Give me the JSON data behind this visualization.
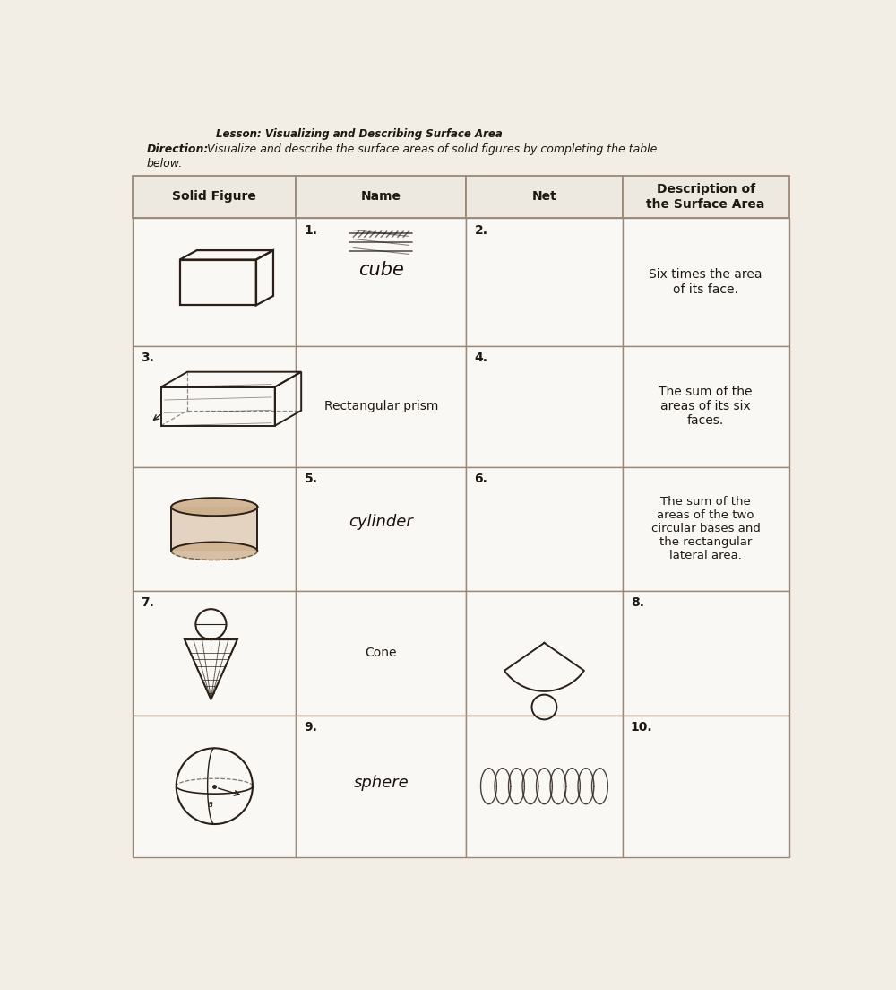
{
  "title_lesson": "Lesson: Visualizing and Describing Surface Area",
  "title_direction_bold": "Direction:",
  "title_direction_rest": " Visualize and describe the surface areas of solid figures by completing the table",
  "title_direction_line2": "below.",
  "col_headers": [
    "Solid Figure",
    "Name",
    "Net",
    "Description of\nthe Surface Area"
  ],
  "row_numbers": {
    "col0": [
      "3.",
      "7."
    ],
    "col1": [
      "1.",
      "5.",
      "9."
    ],
    "col2": [
      "2.",
      "4.",
      "6."
    ]
  },
  "desc_texts": [
    "Six times the area\nof its face.",
    "The sum of the\nareas of its six\nfaces.",
    "The sum of the\nareas of the two\ncircular bases and\nthe rectangular\nlateral area.",
    "8.",
    "10."
  ],
  "name_texts": [
    "Rectangular prism",
    "Cone"
  ],
  "bg_color": "#f2ede5",
  "table_bg": "#faf8f4",
  "header_bg": "#ede9e0",
  "line_color": "#9a8878",
  "text_color": "#1e1810",
  "figure_color": "#2a2018",
  "cylinder_fill": "#c8a882"
}
